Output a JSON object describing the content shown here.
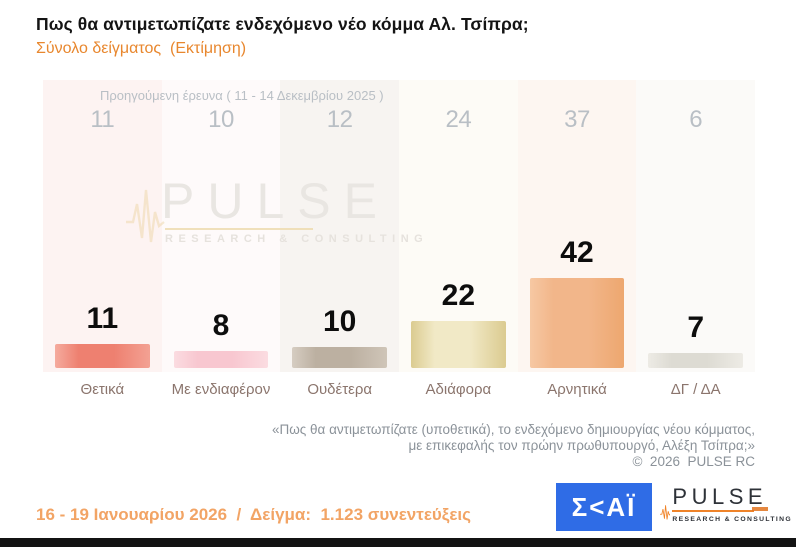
{
  "header": {
    "title": "Πως θα αντιμετωπίζατε ενδεχόμενο νέο κόμμα Αλ. Τσίπρα;",
    "subtitle": "Σύνολο δείγματος  (Εκτίμηση)"
  },
  "chart_data": {
    "type": "bar",
    "title": "Πως θα αντιμετωπίζατε ενδεχόμενο νέο κόμμα Αλ. Τσίπρα;",
    "subtitle": "Σύνολο δείγματος (Εκτίμηση)",
    "categories": [
      "Θετικά",
      "Με ενδιαφέρον",
      "Ουδέτερα",
      "Αδιάφορα",
      "Αρνητικά",
      "ΔΓ / ΔΑ"
    ],
    "series": [
      {
        "name": "Προηγούμενη έρευνα ( 11 - 14 Δεκεμβρίου 2025 )",
        "values": [
          11,
          10,
          12,
          24,
          37,
          6
        ]
      },
      {
        "name": "16 - 19 Ιανουαρίου 2026",
        "values": [
          11,
          8,
          10,
          22,
          42,
          7
        ]
      }
    ],
    "unit": "percent",
    "ylim": [
      0,
      45
    ],
    "grid": false,
    "legend_position": "none"
  },
  "previous_survey_label": "Προηγούμενη έρευνα ( 11 - 14 Δεκεμβρίου 2025 )",
  "watermark": {
    "text": "PULSE",
    "tagline": "RESEARCH & CONSULTING"
  },
  "footnote": {
    "lines": [
      "«Πως θα αντιμετωπίζατε (υποθετικά), το ενδεχόμενο δημιουργίας νέου κόμματος,",
      "με επικεφαλής τον πρώην πρωθυπουργό, Αλέξη Τσίπρα;»",
      "©  2026  PULSE RC"
    ]
  },
  "footer": {
    "date_sample": "16 - 19 Ιανουαρίου 2026  /  Δείγμα:  1.123 συνεντεύξεις",
    "skai_logo_text": "Σ<ΑΪ",
    "pulse_logo_text": "PULSE",
    "pulse_logo_tagline": "RESEARCH & CONSULTING"
  },
  "colors": {
    "subtitle_orange": "#e8872e",
    "footer_orange": "#f2a465",
    "prev_survey_gray": "#b9bfc5",
    "category_label_brown": "#8b756d",
    "footnote_gray": "#8b9299",
    "value_black": "#0d0d0d",
    "skai_blue": "#2f6ce6",
    "pulse_orange": "#f08124",
    "bottom_strip": "#131313",
    "bar_styles": [
      {
        "from": "#f5ab9e",
        "mid": "#ee8070",
        "to": "#f3a193",
        "band": "#fdf3f2"
      },
      {
        "from": "#fbdce1",
        "mid": "#f8c7d0",
        "to": "#fbdce1",
        "band": "#fefafa"
      },
      {
        "from": "#d6cdc2",
        "mid": "#bcb0a1",
        "to": "#cfc5b8",
        "band": "#f7f4f1"
      },
      {
        "from": "#dbcb90",
        "mid": "#f1e9c6",
        "to": "#dbcb90",
        "band": "#fdfbf6"
      },
      {
        "from": "#f6c8a3",
        "mid": "#f2b68a",
        "to": "#eda76f",
        "band": "#fdf6f1"
      },
      {
        "from": "#edebe5",
        "mid": "#dddbd3",
        "to": "#edebe5",
        "band": "#fbfaf8"
      }
    ]
  }
}
